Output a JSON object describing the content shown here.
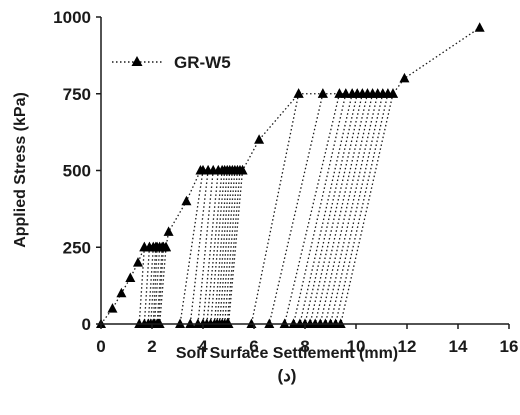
{
  "chart_data": {
    "type": "line",
    "xlabel": "Soil Surface Settlement (mm)",
    "ylabel": "Applied Stress  (kPa)",
    "caption": "(د)",
    "xlim": [
      0,
      16
    ],
    "ylim": [
      0,
      1000
    ],
    "xticks": [
      "0",
      "2",
      "4",
      "6",
      "8",
      "10",
      "12",
      "14",
      "16"
    ],
    "yticks": [
      "0",
      "250",
      "500",
      "750",
      "1000"
    ],
    "grid": false,
    "legend_position": "top-left",
    "series": [
      {
        "name": "GR-W5",
        "color": "#000000",
        "marker": "triangle",
        "line_style": "dotted",
        "x": [
          0,
          0.45,
          0.8,
          1.15,
          1.45,
          1.7,
          1.9,
          2.05,
          2.15,
          2.2,
          2.3,
          2.4,
          2.45,
          2.55,
          2.65,
          3.35,
          3.9,
          4.0,
          4.2,
          4.4,
          4.6,
          4.75,
          4.85,
          4.95,
          5.05,
          5.15,
          5.25,
          5.35,
          5.45,
          5.55,
          6.2,
          7.75,
          8.7,
          9.35,
          9.6,
          9.85,
          10.05,
          10.25,
          10.45,
          10.65,
          10.85,
          11.05,
          11.25,
          11.45,
          11.9,
          14.85
        ],
        "y": [
          0,
          50,
          100,
          150,
          200,
          250,
          250,
          250,
          250,
          250,
          250,
          250,
          250,
          250,
          300,
          400,
          500,
          500,
          500,
          500,
          500,
          500,
          500,
          500,
          500,
          500,
          500,
          500,
          500,
          500,
          600,
          750,
          750,
          750,
          750,
          750,
          750,
          750,
          750,
          750,
          750,
          750,
          750,
          750,
          800,
          965
        ]
      }
    ],
    "unloading_cycles": [
      {
        "x": [
          1.7,
          1.5
        ],
        "y": [
          250,
          0
        ]
      },
      {
        "x": [
          1.9,
          1.7
        ],
        "y": [
          250,
          0
        ]
      },
      {
        "x": [
          2.05,
          1.85
        ],
        "y": [
          250,
          0
        ]
      },
      {
        "x": [
          2.15,
          1.95
        ],
        "y": [
          250,
          0
        ]
      },
      {
        "x": [
          2.2,
          2.05
        ],
        "y": [
          250,
          0
        ]
      },
      {
        "x": [
          2.3,
          2.1
        ],
        "y": [
          250,
          0
        ]
      },
      {
        "x": [
          2.4,
          2.2
        ],
        "y": [
          250,
          0
        ]
      },
      {
        "x": [
          2.45,
          2.25
        ],
        "y": [
          250,
          0
        ]
      },
      {
        "x": [
          2.55,
          2.3
        ],
        "y": [
          250,
          0
        ]
      },
      {
        "x": [
          4.0,
          3.1
        ],
        "y": [
          500,
          0
        ]
      },
      {
        "x": [
          4.2,
          3.5
        ],
        "y": [
          500,
          0
        ]
      },
      {
        "x": [
          4.4,
          3.8
        ],
        "y": [
          500,
          0
        ]
      },
      {
        "x": [
          4.6,
          4.0
        ],
        "y": [
          500,
          0
        ]
      },
      {
        "x": [
          4.75,
          4.15
        ],
        "y": [
          500,
          0
        ]
      },
      {
        "x": [
          4.85,
          4.3
        ],
        "y": [
          500,
          0
        ]
      },
      {
        "x": [
          4.95,
          4.45
        ],
        "y": [
          500,
          0
        ]
      },
      {
        "x": [
          5.05,
          4.55
        ],
        "y": [
          500,
          0
        ]
      },
      {
        "x": [
          5.15,
          4.65
        ],
        "y": [
          500,
          0
        ]
      },
      {
        "x": [
          5.25,
          4.75
        ],
        "y": [
          500,
          0
        ]
      },
      {
        "x": [
          5.35,
          4.85
        ],
        "y": [
          500,
          0
        ]
      },
      {
        "x": [
          5.45,
          4.95
        ],
        "y": [
          500,
          0
        ]
      },
      {
        "x": [
          5.55,
          5.0
        ],
        "y": [
          500,
          0
        ]
      },
      {
        "x": [
          7.75,
          5.9
        ],
        "y": [
          750,
          0
        ]
      },
      {
        "x": [
          8.7,
          6.6
        ],
        "y": [
          750,
          0
        ]
      },
      {
        "x": [
          9.35,
          7.2
        ],
        "y": [
          750,
          0
        ]
      },
      {
        "x": [
          9.6,
          7.55
        ],
        "y": [
          750,
          0
        ]
      },
      {
        "x": [
          9.85,
          7.8
        ],
        "y": [
          750,
          0
        ]
      },
      {
        "x": [
          10.05,
          8.0
        ],
        "y": [
          750,
          0
        ]
      },
      {
        "x": [
          10.25,
          8.2
        ],
        "y": [
          750,
          0
        ]
      },
      {
        "x": [
          10.45,
          8.4
        ],
        "y": [
          750,
          0
        ]
      },
      {
        "x": [
          10.65,
          8.6
        ],
        "y": [
          750,
          0
        ]
      },
      {
        "x": [
          10.85,
          8.8
        ],
        "y": [
          750,
          0
        ]
      },
      {
        "x": [
          11.05,
          9.0
        ],
        "y": [
          750,
          0
        ]
      },
      {
        "x": [
          11.25,
          9.2
        ],
        "y": [
          750,
          0
        ]
      },
      {
        "x": [
          11.45,
          9.4
        ],
        "y": [
          750,
          0
        ]
      }
    ]
  }
}
